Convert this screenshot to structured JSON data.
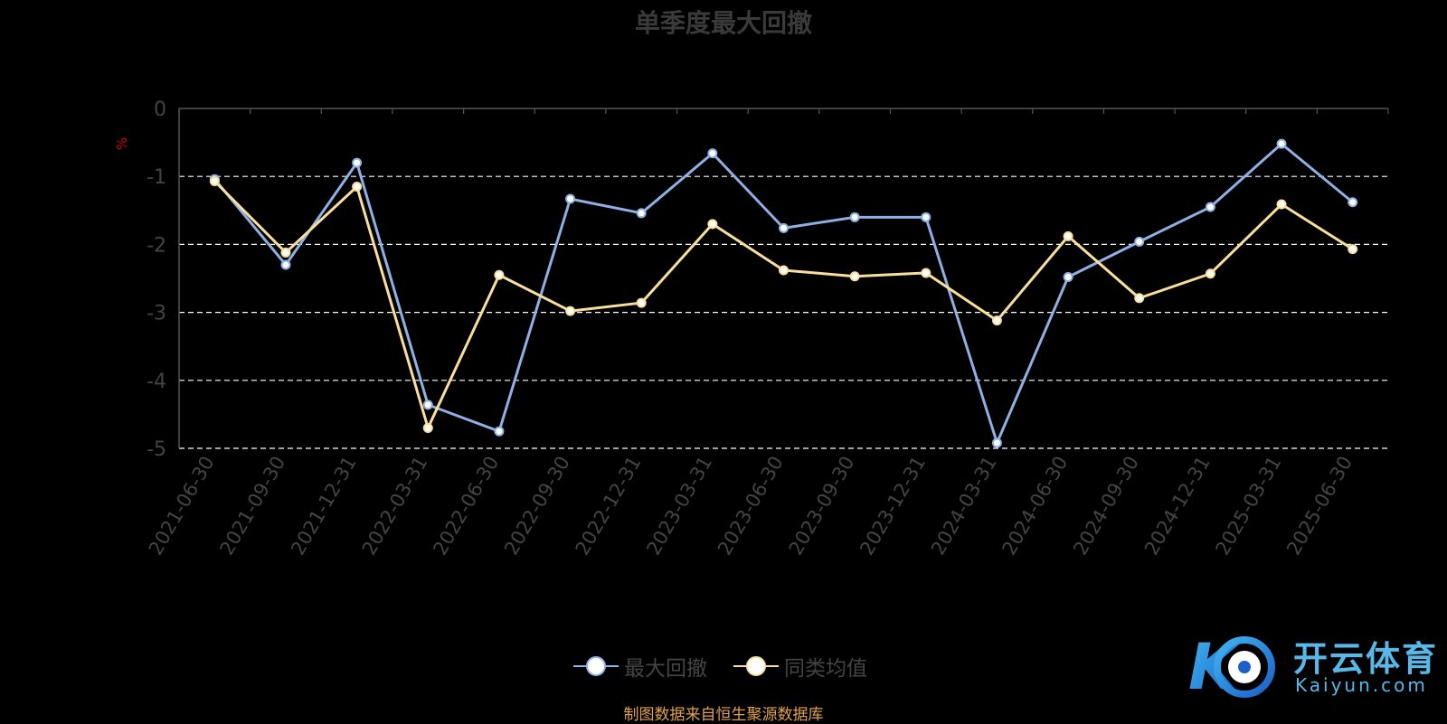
{
  "chart_data": {
    "type": "line",
    "title": "单季度最大回撤",
    "ylabel": "%",
    "ylim": [
      -5,
      0
    ],
    "yticks": [
      0,
      -1,
      -2,
      -3,
      -4,
      -5
    ],
    "grid": true,
    "legend_position": "bottom",
    "categories": [
      "2021-06-30",
      "2021-09-30",
      "2021-12-31",
      "2022-03-31",
      "2022-06-30",
      "2022-09-30",
      "2022-12-31",
      "2023-03-31",
      "2023-06-30",
      "2023-09-30",
      "2023-12-31",
      "2024-03-31",
      "2024-06-30",
      "2024-09-30",
      "2024-12-31",
      "2025-03-31",
      "2025-06-30"
    ],
    "series": [
      {
        "name": "最大回撤",
        "color": "#8fb0e3",
        "values": [
          -1.04,
          -2.3,
          -0.8,
          -4.36,
          -4.75,
          -1.33,
          -1.54,
          -0.66,
          -1.76,
          -1.6,
          -1.6,
          -4.92,
          -2.48,
          -1.96,
          -1.45,
          -0.52,
          -1.38
        ]
      },
      {
        "name": "同类均值",
        "color": "#f9df9c",
        "values": [
          -1.07,
          -2.12,
          -1.15,
          -4.7,
          -2.45,
          -2.98,
          -2.86,
          -1.7,
          -2.38,
          -2.47,
          -2.42,
          -3.12,
          -1.88,
          -2.79,
          -2.43,
          -1.41,
          -2.07
        ]
      }
    ]
  },
  "source_note": "制图数据来自恒生聚源数据库",
  "watermark": {
    "cn": "开云体育",
    "en": "Kaiyun.com",
    "mark": "K"
  }
}
